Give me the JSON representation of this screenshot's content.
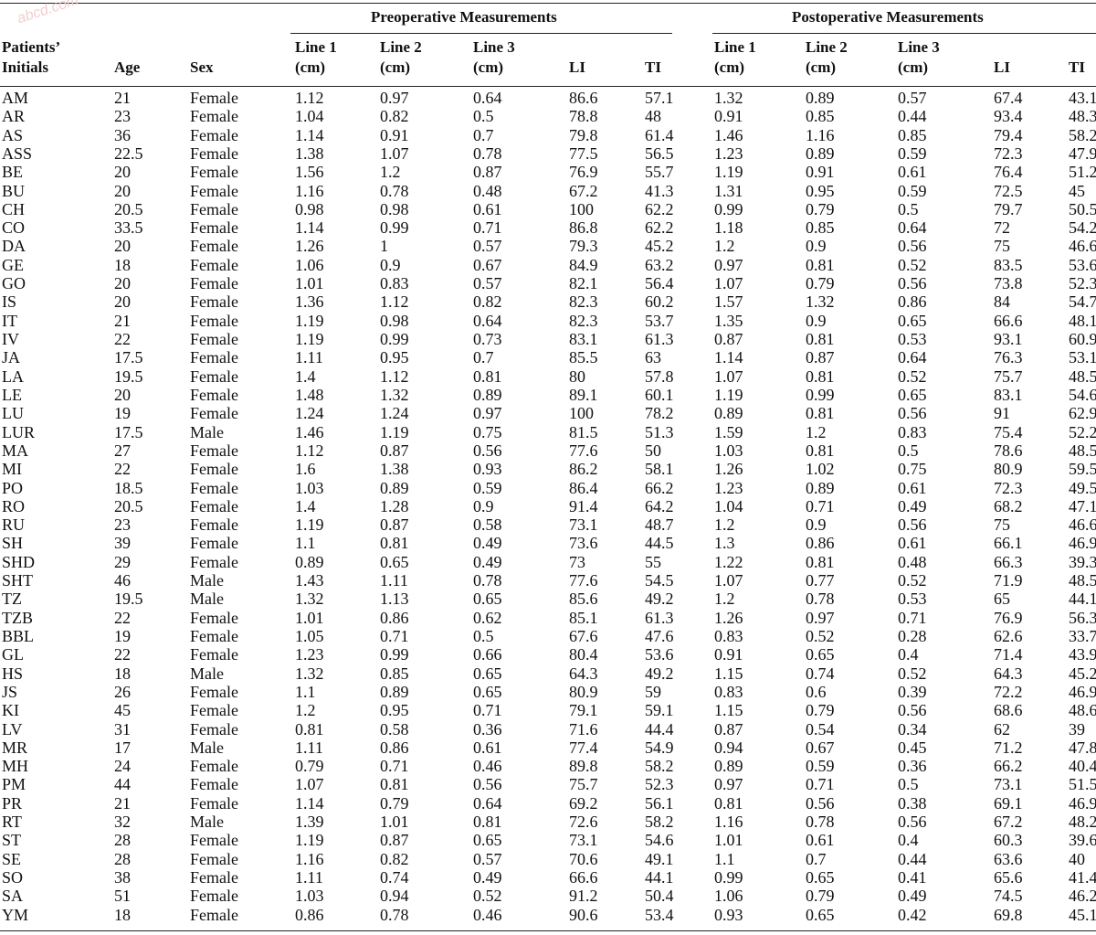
{
  "table": {
    "groups": {
      "pre": "Preoperative Measurements",
      "post": "Postoperative Measurements"
    },
    "headers": {
      "initials": [
        "Patients’",
        "Initials"
      ],
      "age": "Age",
      "sex": "Sex",
      "line1": [
        "Line 1",
        "(cm)"
      ],
      "line2": [
        "Line 2",
        "(cm)"
      ],
      "line3": [
        "Line 3",
        "(cm)"
      ],
      "li": "LI",
      "ti": "TI"
    },
    "rows": [
      [
        "AM",
        "21",
        "Female",
        "1.12",
        "0.97",
        "0.64",
        "86.6",
        "57.1",
        "1.32",
        "0.89",
        "0.57",
        "67.4",
        "43.1"
      ],
      [
        "AR",
        "23",
        "Female",
        "1.04",
        "0.82",
        "0.5",
        "78.8",
        "48",
        "0.91",
        "0.85",
        "0.44",
        "93.4",
        "48.3"
      ],
      [
        "AS",
        "36",
        "Female",
        "1.14",
        "0.91",
        "0.7",
        "79.8",
        "61.4",
        "1.46",
        "1.16",
        "0.85",
        "79.4",
        "58.2"
      ],
      [
        "ASS",
        "22.5",
        "Female",
        "1.38",
        "1.07",
        "0.78",
        "77.5",
        "56.5",
        "1.23",
        "0.89",
        "0.59",
        "72.3",
        "47.9"
      ],
      [
        "BE",
        "20",
        "Female",
        "1.56",
        "1.2",
        "0.87",
        "76.9",
        "55.7",
        "1.19",
        "0.91",
        "0.61",
        "76.4",
        "51.2"
      ],
      [
        "BU",
        "20",
        "Female",
        "1.16",
        "0.78",
        "0.48",
        "67.2",
        "41.3",
        "1.31",
        "0.95",
        "0.59",
        "72.5",
        "45"
      ],
      [
        "CH",
        "20.5",
        "Female",
        "0.98",
        "0.98",
        "0.61",
        "100",
        "62.2",
        "0.99",
        "0.79",
        "0.5",
        "79.7",
        "50.5"
      ],
      [
        "CO",
        "33.5",
        "Female",
        "1.14",
        "0.99",
        "0.71",
        "86.8",
        "62.2",
        "1.18",
        "0.85",
        "0.64",
        "72",
        "54.2"
      ],
      [
        "DA",
        "20",
        "Female",
        "1.26",
        "1",
        "0.57",
        "79.3",
        "45.2",
        "1.2",
        "0.9",
        "0.56",
        "75",
        "46.6"
      ],
      [
        "GE",
        "18",
        "Female",
        "1.06",
        "0.9",
        "0.67",
        "84.9",
        "63.2",
        "0.97",
        "0.81",
        "0.52",
        "83.5",
        "53.6"
      ],
      [
        "GO",
        "20",
        "Female",
        "1.01",
        "0.83",
        "0.57",
        "82.1",
        "56.4",
        "1.07",
        "0.79",
        "0.56",
        "73.8",
        "52.3"
      ],
      [
        "IS",
        "20",
        "Female",
        "1.36",
        "1.12",
        "0.82",
        "82.3",
        "60.2",
        "1.57",
        "1.32",
        "0.86",
        "84",
        "54.7"
      ],
      [
        "IT",
        "21",
        "Female",
        "1.19",
        "0.98",
        "0.64",
        "82.3",
        "53.7",
        "1.35",
        "0.9",
        "0.65",
        "66.6",
        "48.1"
      ],
      [
        "IV",
        "22",
        "Female",
        "1.19",
        "0.99",
        "0.73",
        "83.1",
        "61.3",
        "0.87",
        "0.81",
        "0.53",
        "93.1",
        "60.9"
      ],
      [
        "JA",
        "17.5",
        "Female",
        "1.11",
        "0.95",
        "0.7",
        "85.5",
        "63",
        "1.14",
        "0.87",
        "0.64",
        "76.3",
        "53.1"
      ],
      [
        "LA",
        "19.5",
        "Female",
        "1.4",
        "1.12",
        "0.81",
        "80",
        "57.8",
        "1.07",
        "0.81",
        "0.52",
        "75.7",
        "48.5"
      ],
      [
        "LE",
        "20",
        "Female",
        "1.48",
        "1.32",
        "0.89",
        "89.1",
        "60.1",
        "1.19",
        "0.99",
        "0.65",
        "83.1",
        "54.6"
      ],
      [
        "LU",
        "19",
        "Female",
        "1.24",
        "1.24",
        "0.97",
        "100",
        "78.2",
        "0.89",
        "0.81",
        "0.56",
        "91",
        "62.9"
      ],
      [
        "LUR",
        "17.5",
        "Male",
        "1.46",
        "1.19",
        "0.75",
        "81.5",
        "51.3",
        "1.59",
        "1.2",
        "0.83",
        "75.4",
        "52.2"
      ],
      [
        "MA",
        "27",
        "Female",
        "1.12",
        "0.87",
        "0.56",
        "77.6",
        "50",
        "1.03",
        "0.81",
        "0.5",
        "78.6",
        "48.5"
      ],
      [
        "MI",
        "22",
        "Female",
        "1.6",
        "1.38",
        "0.93",
        "86.2",
        "58.1",
        "1.26",
        "1.02",
        "0.75",
        "80.9",
        "59.5"
      ],
      [
        "PO",
        "18.5",
        "Female",
        "1.03",
        "0.89",
        "0.59",
        "86.4",
        "66.2",
        "1.23",
        "0.89",
        "0.61",
        "72.3",
        "49.5"
      ],
      [
        "RO",
        "20.5",
        "Female",
        "1.4",
        "1.28",
        "0.9",
        "91.4",
        "64.2",
        "1.04",
        "0.71",
        "0.49",
        "68.2",
        "47.1"
      ],
      [
        "RU",
        "23",
        "Female",
        "1.19",
        "0.87",
        "0.58",
        "73.1",
        "48.7",
        "1.2",
        "0.9",
        "0.56",
        "75",
        "46.6"
      ],
      [
        "SH",
        "39",
        "Female",
        "1.1",
        "0.81",
        "0.49",
        "73.6",
        "44.5",
        "1.3",
        "0.86",
        "0.61",
        "66.1",
        "46.9"
      ],
      [
        "SHD",
        "29",
        "Female",
        "0.89",
        "0.65",
        "0.49",
        "73",
        "55",
        "1.22",
        "0.81",
        "0.48",
        "66.3",
        "39.3"
      ],
      [
        "SHT",
        "46",
        "Male",
        "1.43",
        "1.11",
        "0.78",
        "77.6",
        "54.5",
        "1.07",
        "0.77",
        "0.52",
        "71.9",
        "48.5"
      ],
      [
        "TZ",
        "19.5",
        "Male",
        "1.32",
        "1.13",
        "0.65",
        "85.6",
        "49.2",
        "1.2",
        "0.78",
        "0.53",
        "65",
        "44.1"
      ],
      [
        "TZB",
        "22",
        "Female",
        "1.01",
        "0.86",
        "0.62",
        "85.1",
        "61.3",
        "1.26",
        "0.97",
        "0.71",
        "76.9",
        "56.3"
      ],
      [
        "BBL",
        "19",
        "Female",
        "1.05",
        "0.71",
        "0.5",
        "67.6",
        "47.6",
        "0.83",
        "0.52",
        "0.28",
        "62.6",
        "33.7"
      ],
      [
        "GL",
        "22",
        "Female",
        "1.23",
        "0.99",
        "0.66",
        "80.4",
        "53.6",
        "0.91",
        "0.65",
        "0.4",
        "71.4",
        "43.9"
      ],
      [
        "HS",
        "18",
        "Male",
        "1.32",
        "0.85",
        "0.65",
        "64.3",
        "49.2",
        "1.15",
        "0.74",
        "0.52",
        "64.3",
        "45.2"
      ],
      [
        "JS",
        "26",
        "Female",
        "1.1",
        "0.89",
        "0.65",
        "80.9",
        "59",
        "0.83",
        "0.6",
        "0.39",
        "72.2",
        "46.9"
      ],
      [
        "KI",
        "45",
        "Female",
        "1.2",
        "0.95",
        "0.71",
        "79.1",
        "59.1",
        "1.15",
        "0.79",
        "0.56",
        "68.6",
        "48.6"
      ],
      [
        "LV",
        "31",
        "Female",
        "0.81",
        "0.58",
        "0.36",
        "71.6",
        "44.4",
        "0.87",
        "0.54",
        "0.34",
        "62",
        "39"
      ],
      [
        "MR",
        "17",
        "Male",
        "1.11",
        "0.86",
        "0.61",
        "77.4",
        "54.9",
        "0.94",
        "0.67",
        "0.45",
        "71.2",
        "47.8"
      ],
      [
        "MH",
        "24",
        "Female",
        "0.79",
        "0.71",
        "0.46",
        "89.8",
        "58.2",
        "0.89",
        "0.59",
        "0.36",
        "66.2",
        "40.4"
      ],
      [
        "PM",
        "44",
        "Female",
        "1.07",
        "0.81",
        "0.56",
        "75.7",
        "52.3",
        "0.97",
        "0.71",
        "0.5",
        "73.1",
        "51.5"
      ],
      [
        "PR",
        "21",
        "Female",
        "1.14",
        "0.79",
        "0.64",
        "69.2",
        "56.1",
        "0.81",
        "0.56",
        "0.38",
        "69.1",
        "46.9"
      ],
      [
        "RT",
        "32",
        "Male",
        "1.39",
        "1.01",
        "0.81",
        "72.6",
        "58.2",
        "1.16",
        "0.78",
        "0.56",
        "67.2",
        "48.2"
      ],
      [
        "ST",
        "28",
        "Female",
        "1.19",
        "0.87",
        "0.65",
        "73.1",
        "54.6",
        "1.01",
        "0.61",
        "0.4",
        "60.3",
        "39.6"
      ],
      [
        "SE",
        "28",
        "Female",
        "1.16",
        "0.82",
        "0.57",
        "70.6",
        "49.1",
        "1.1",
        "0.7",
        "0.44",
        "63.6",
        "40"
      ],
      [
        "SO",
        "38",
        "Female",
        "1.11",
        "0.74",
        "0.49",
        "66.6",
        "44.1",
        "0.99",
        "0.65",
        "0.41",
        "65.6",
        "41.4"
      ],
      [
        "SA",
        "51",
        "Female",
        "1.03",
        "0.94",
        "0.52",
        "91.2",
        "50.4",
        "1.06",
        "0.79",
        "0.49",
        "74.5",
        "46.2"
      ],
      [
        "YM",
        "18",
        "Female",
        "0.86",
        "0.78",
        "0.46",
        "90.6",
        "53.4",
        "0.93",
        "0.65",
        "0.42",
        "69.8",
        "45.1"
      ]
    ]
  },
  "watermark": "abcd.com"
}
